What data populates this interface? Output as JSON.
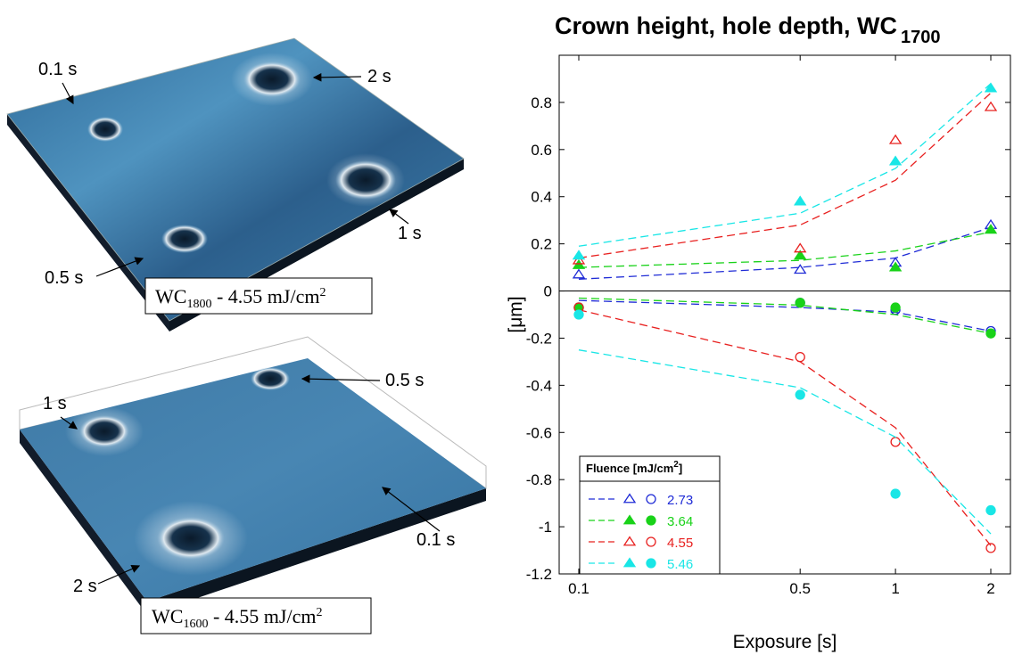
{
  "panels": [
    {
      "caption": "WC1800 - 4.55 mJ/cm2",
      "caption_parts": {
        "base": "WC",
        "sub": "1800",
        "rest": " - 4.55 mJ/cm",
        "sup": "2"
      },
      "labels": [
        "0.1 s",
        "2 s",
        "1 s",
        "0.5 s"
      ]
    },
    {
      "caption": "WC1600 - 4.55 mJ/cm2",
      "caption_parts": {
        "base": "WC",
        "sub": "1600",
        "rest": " - 4.55 mJ/cm",
        "sup": "2"
      },
      "labels": [
        "1 s",
        "0.5 s",
        "0.1 s",
        "2 s"
      ]
    }
  ],
  "chart_data": {
    "type": "scatter",
    "title": "Crown height, hole depth, WC",
    "title_sub": "1700",
    "xlabel": "Exposure [s]",
    "ylabel": "[μm]",
    "x_scale": "log",
    "xlim": [
      0.1,
      2
    ],
    "ylim": [
      -1.2,
      1
    ],
    "x_ticks": [
      "0.1",
      "0.5",
      "1",
      "2"
    ],
    "y_ticks": [
      "0.8",
      "0.6",
      "0.4",
      "0.2",
      "0",
      "-0.2",
      "-0.4",
      "-0.6",
      "-0.8",
      "-1",
      "-1.2"
    ],
    "legend": {
      "title": "Fluence [mJ/cm",
      "title_sup": "2",
      "title_end": "]",
      "placement": "bottom-left"
    },
    "series": [
      {
        "name": "2.73",
        "color": "#1f2bd6",
        "marker_filled": false,
        "crown": {
          "x": [
            0.1,
            0.5,
            1,
            2
          ],
          "y": [
            0.07,
            0.09,
            0.12,
            0.28
          ]
        },
        "crown_fit": {
          "x": [
            0.1,
            0.5,
            1,
            2
          ],
          "y": [
            0.05,
            0.1,
            0.14,
            0.27
          ]
        },
        "hole": {
          "x": [
            0.1,
            0.5,
            1,
            2
          ],
          "y": [
            -0.07,
            -0.05,
            -0.08,
            -0.17
          ]
        },
        "hole_fit": {
          "x": [
            0.1,
            0.5,
            1,
            2
          ],
          "y": [
            -0.04,
            -0.07,
            -0.09,
            -0.17
          ]
        }
      },
      {
        "name": "3.64",
        "color": "#19d219",
        "marker_filled": true,
        "crown": {
          "x": [
            0.1,
            0.5,
            1,
            2
          ],
          "y": [
            0.11,
            0.15,
            0.1,
            0.26
          ]
        },
        "crown_fit": {
          "x": [
            0.1,
            0.5,
            1,
            2
          ],
          "y": [
            0.1,
            0.13,
            0.17,
            0.25
          ]
        },
        "hole": {
          "x": [
            0.1,
            0.5,
            1,
            2
          ],
          "y": [
            -0.07,
            -0.05,
            -0.07,
            -0.18
          ]
        },
        "hole_fit": {
          "x": [
            0.1,
            0.5,
            1,
            2
          ],
          "y": [
            -0.03,
            -0.06,
            -0.1,
            -0.18
          ]
        }
      },
      {
        "name": "4.55",
        "color": "#e8201f",
        "marker_filled": false,
        "crown": {
          "x": [
            0.1,
            0.5,
            1,
            2
          ],
          "y": [
            0.13,
            0.18,
            0.64,
            0.78
          ]
        },
        "crown_fit": {
          "x": [
            0.1,
            0.5,
            1,
            2
          ],
          "y": [
            0.14,
            0.28,
            0.47,
            0.84
          ]
        },
        "hole": {
          "x": [
            0.1,
            0.5,
            1,
            2
          ],
          "y": [
            -0.07,
            -0.28,
            -0.64,
            -1.09
          ]
        },
        "hole_fit": {
          "x": [
            0.1,
            0.5,
            1,
            2
          ],
          "y": [
            -0.08,
            -0.3,
            -0.58,
            -1.08
          ]
        }
      },
      {
        "name": "5.46",
        "color": "#19e6e6",
        "marker_filled": true,
        "crown": {
          "x": [
            0.1,
            0.5,
            1,
            2
          ],
          "y": [
            0.15,
            0.38,
            0.55,
            0.86
          ]
        },
        "crown_fit": {
          "x": [
            0.1,
            0.5,
            1,
            2
          ],
          "y": [
            0.19,
            0.33,
            0.52,
            0.88
          ]
        },
        "hole": {
          "x": [
            0.1,
            0.5,
            1,
            2
          ],
          "y": [
            -0.1,
            -0.44,
            -0.86,
            -0.93
          ]
        },
        "hole_fit": {
          "x": [
            0.1,
            0.5,
            1,
            2
          ],
          "y": [
            -0.25,
            -0.41,
            -0.62,
            -1.03
          ]
        }
      }
    ]
  }
}
